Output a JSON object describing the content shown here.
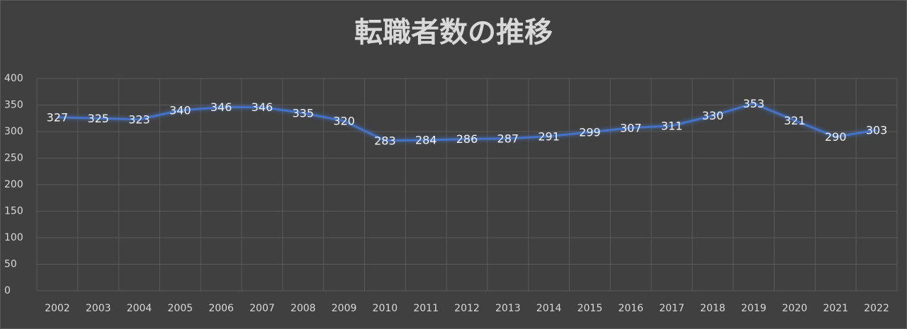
{
  "chart_data": {
    "type": "line",
    "title": "転職者数の推移",
    "categories": [
      "2002",
      "2003",
      "2004",
      "2005",
      "2006",
      "2007",
      "2008",
      "2009",
      "2010",
      "2011",
      "2012",
      "2013",
      "2014",
      "2015",
      "2016",
      "2017",
      "2018",
      "2019",
      "2020",
      "2021",
      "2022"
    ],
    "values": [
      327,
      325,
      323,
      340,
      346,
      346,
      335,
      320,
      283,
      284,
      286,
      287,
      291,
      299,
      307,
      311,
      330,
      353,
      321,
      290,
      303
    ],
    "color": "#4472c4",
    "ylim": [
      0,
      400
    ],
    "yticks": [
      0,
      50,
      100,
      150,
      200,
      250,
      300,
      350,
      400
    ],
    "grid": true
  }
}
